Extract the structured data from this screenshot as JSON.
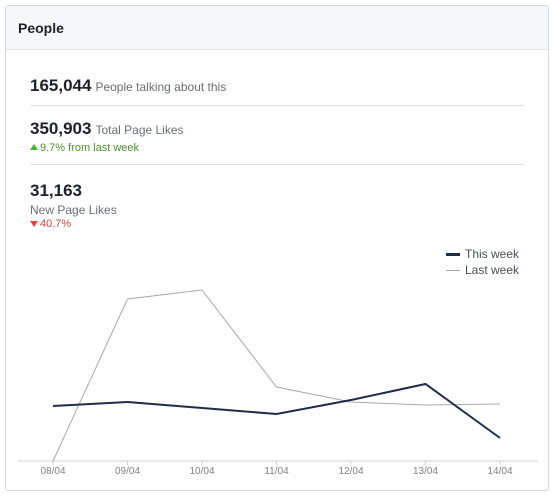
{
  "header": {
    "title": "People"
  },
  "stats": {
    "talking": {
      "value": "165,044",
      "label": "People talking about this"
    },
    "total_likes": {
      "value": "350,903",
      "label": "Total Page Likes",
      "change": "9.7% from last week",
      "direction": "up"
    },
    "new_likes": {
      "value": "31,163",
      "label": "New Page Likes",
      "change": "40.7%",
      "direction": "down"
    }
  },
  "colors": {
    "this_week": "#1f2d4a",
    "last_week": "#a6a9ae",
    "up": "#42b72a",
    "down": "#e0463b"
  },
  "chart_data": {
    "type": "line",
    "categories": [
      "08/04",
      "09/04",
      "10/04",
      "11/04",
      "12/04",
      "13/04",
      "14/04"
    ],
    "series": [
      {
        "name": "This week",
        "values": [
          55,
          59,
          53,
          47,
          61,
          77,
          23
        ]
      },
      {
        "name": "Last week",
        "values": [
          0,
          162,
          171,
          74,
          59,
          56,
          57
        ]
      }
    ],
    "ylim": [
      0,
      195
    ],
    "legend": "top-right",
    "grid": false
  }
}
